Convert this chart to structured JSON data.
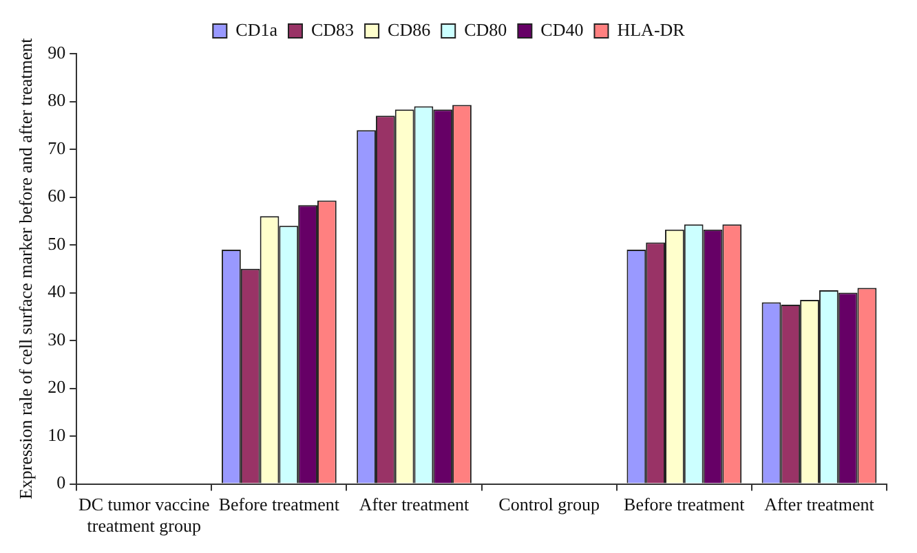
{
  "chart_data": {
    "type": "bar",
    "ylabel": "Expression rale of cell surface marker before and after treatment",
    "categories": [
      "DC tumor vaccine\ntreatment group",
      "Before treatment",
      "After treatment",
      "Control group",
      "Before treatment",
      "After treatment"
    ],
    "series": [
      {
        "name": "CD1a",
        "color": "#9999ff",
        "values": [
          null,
          49,
          74,
          null,
          49,
          38
        ]
      },
      {
        "name": "CD83",
        "color": "#993366",
        "values": [
          null,
          45,
          77,
          null,
          50.5,
          37.5
        ]
      },
      {
        "name": "CD86",
        "color": "#ffffcc",
        "values": [
          null,
          56,
          78.3,
          null,
          53.2,
          38.5
        ]
      },
      {
        "name": "CD80",
        "color": "#ccffff",
        "values": [
          null,
          54,
          79,
          null,
          54.3,
          40.5
        ]
      },
      {
        "name": "CD40",
        "color": "#660066",
        "values": [
          null,
          58.3,
          78.3,
          null,
          53.2,
          40
        ]
      },
      {
        "name": "HLA-DR",
        "color": "#ff8080",
        "values": [
          null,
          59.3,
          79.3,
          null,
          54.3,
          41
        ]
      }
    ],
    "ylim": [
      0,
      90
    ],
    "yticks": [
      0,
      10,
      20,
      30,
      40,
      50,
      60,
      70,
      80,
      90
    ],
    "grid": false,
    "legend": "top"
  }
}
